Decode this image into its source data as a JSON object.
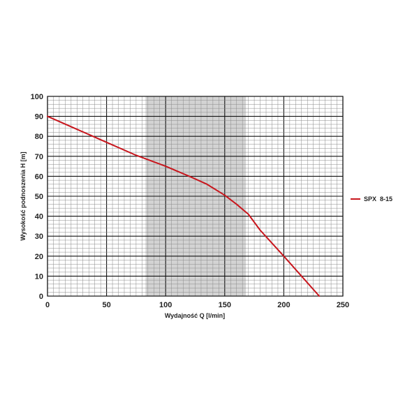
{
  "chart_data": {
    "type": "line",
    "xlabel": "Wydajność Q [l/min]",
    "ylabel": "Wysokość podnoszenia H [m]",
    "xlim": [
      0,
      250
    ],
    "ylim": [
      0,
      100
    ],
    "x_ticks": [
      "0",
      "50",
      "100",
      "150",
      "200",
      "250"
    ],
    "y_ticks": [
      "0",
      "10",
      "20",
      "30",
      "40",
      "50",
      "60",
      "70",
      "80",
      "90",
      "100"
    ],
    "grid": true,
    "shaded_x_range": [
      83,
      168
    ],
    "legend_position": "right",
    "series": [
      {
        "name": "SPX  8-15",
        "color": "#c8161d",
        "x": [
          0,
          25,
          50,
          75,
          100,
          120,
          135,
          150,
          160,
          170,
          180,
          200,
          215,
          230
        ],
        "y": [
          90,
          83.5,
          77,
          70.5,
          65,
          60,
          56,
          50.5,
          46,
          41,
          33,
          20,
          10,
          0
        ]
      }
    ]
  }
}
